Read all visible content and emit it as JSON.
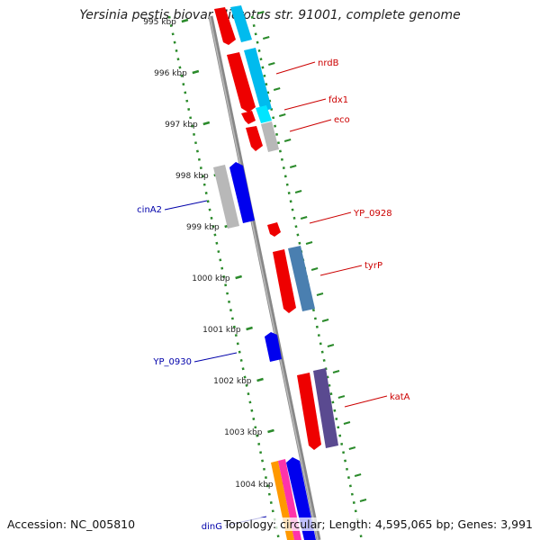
{
  "title": "Yersinia pestis biovar Microtus str. 91001, complete genome",
  "accession": "Accession: NC_005810",
  "topology": "Topology: circular; Length: 4,595,065 bp; Genes: 3,991",
  "ticks": [
    {
      "label": "995 kbp"
    },
    {
      "label": "996 kbp"
    },
    {
      "label": "997 kbp"
    },
    {
      "label": "998 kbp"
    },
    {
      "label": "999 kbp"
    },
    {
      "label": "1000 kbp"
    },
    {
      "label": "1001 kbp"
    },
    {
      "label": "1002 kbp"
    },
    {
      "label": "1003 kbp"
    },
    {
      "label": "1004 kbp"
    }
  ],
  "labels": [
    {
      "name": "nrdB",
      "color": "#cc0000",
      "side": "right"
    },
    {
      "name": "fdx1",
      "color": "#cc0000",
      "side": "right"
    },
    {
      "name": "eco",
      "color": "#cc0000",
      "side": "right"
    },
    {
      "name": "YP_0928",
      "color": "#cc0000",
      "side": "right"
    },
    {
      "name": "tyrP",
      "color": "#cc0000",
      "side": "right"
    },
    {
      "name": "katA",
      "color": "#cc0000",
      "side": "right"
    },
    {
      "name": "cinA2",
      "color": "#0000aa",
      "side": "left"
    },
    {
      "name": "YP_0930",
      "color": "#0000aa",
      "side": "left"
    },
    {
      "name": "dinG",
      "color": "#0000aa",
      "side": "left"
    }
  ],
  "colors": {
    "forward_gene": "#ee0000",
    "reverse_gene": "#0000ee",
    "cog_cyan": "#00bbee",
    "cog_gray": "#b8b8b8",
    "cog_steelblue": "#4a7fb0",
    "cog_purple": "#5a4a90",
    "cog_orange": "#ff9900",
    "cog_pink": "#ff33aa",
    "backbone": "#888888",
    "ticks": "#2a8a2a"
  }
}
